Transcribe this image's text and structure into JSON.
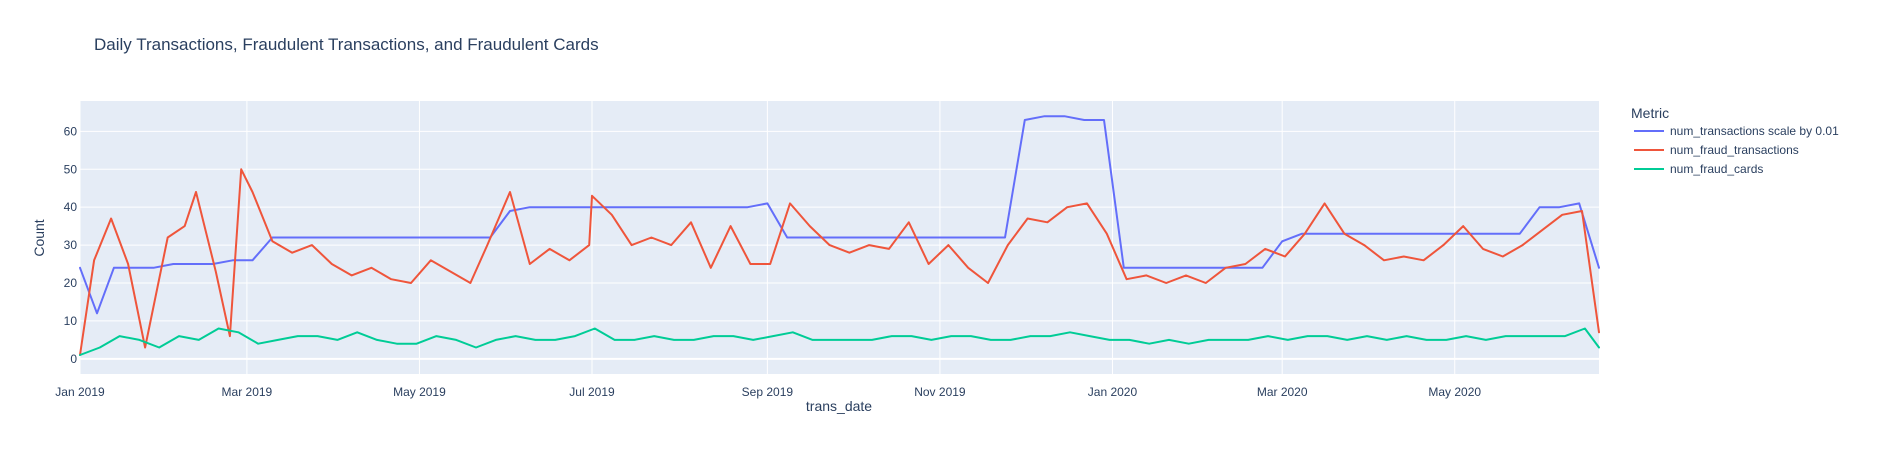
{
  "chart_data": {
    "type": "line",
    "title": "Daily Transactions, Fraudulent Transactions, and Fraudulent Cards",
    "xlabel": "trans_date",
    "ylabel": "Count",
    "x_range": [
      "2019-01-01",
      "2020-06-21"
    ],
    "ylim": [
      -4,
      68
    ],
    "x_ticks": [
      {
        "date": "2019-01-01",
        "label": "Jan 2019"
      },
      {
        "date": "2019-03-01",
        "label": "Mar 2019"
      },
      {
        "date": "2019-05-01",
        "label": "May 2019"
      },
      {
        "date": "2019-07-01",
        "label": "Jul 2019"
      },
      {
        "date": "2019-09-01",
        "label": "Sep 2019"
      },
      {
        "date": "2019-11-01",
        "label": "Nov 2019"
      },
      {
        "date": "2020-01-01",
        "label": "Jan 2020"
      },
      {
        "date": "2020-03-01",
        "label": "Mar 2020"
      },
      {
        "date": "2020-05-01",
        "label": "May 2020"
      }
    ],
    "y_ticks": [
      0,
      10,
      20,
      30,
      40,
      50,
      60
    ],
    "grid": true,
    "legend_title": "Metric",
    "legend_position": "right",
    "background_color": "#e5ecf6",
    "grid_color": "#ffffff",
    "series": [
      {
        "name": "num_transactions scale by 0.01",
        "color": "#636efa",
        "points": [
          [
            "2019-01-01",
            24
          ],
          [
            "2019-01-07",
            12
          ],
          [
            "2019-01-13",
            24
          ],
          [
            "2019-01-20",
            24
          ],
          [
            "2019-01-27",
            24
          ],
          [
            "2019-02-03",
            25
          ],
          [
            "2019-02-10",
            25
          ],
          [
            "2019-02-17",
            25
          ],
          [
            "2019-02-24",
            26
          ],
          [
            "2019-03-03",
            26
          ],
          [
            "2019-03-10",
            32
          ],
          [
            "2019-03-17",
            32
          ],
          [
            "2019-03-24",
            32
          ],
          [
            "2019-03-31",
            32
          ],
          [
            "2019-04-07",
            32
          ],
          [
            "2019-04-14",
            32
          ],
          [
            "2019-04-21",
            32
          ],
          [
            "2019-04-28",
            32
          ],
          [
            "2019-05-05",
            32
          ],
          [
            "2019-05-12",
            32
          ],
          [
            "2019-05-19",
            32
          ],
          [
            "2019-05-26",
            32
          ],
          [
            "2019-06-02",
            39
          ],
          [
            "2019-06-09",
            40
          ],
          [
            "2019-06-16",
            40
          ],
          [
            "2019-06-23",
            40
          ],
          [
            "2019-06-30",
            40
          ],
          [
            "2019-07-07",
            40
          ],
          [
            "2019-07-14",
            40
          ],
          [
            "2019-07-21",
            40
          ],
          [
            "2019-07-28",
            40
          ],
          [
            "2019-08-04",
            40
          ],
          [
            "2019-08-11",
            40
          ],
          [
            "2019-08-18",
            40
          ],
          [
            "2019-08-25",
            40
          ],
          [
            "2019-09-01",
            41
          ],
          [
            "2019-09-08",
            32
          ],
          [
            "2019-09-15",
            32
          ],
          [
            "2019-09-22",
            32
          ],
          [
            "2019-09-29",
            32
          ],
          [
            "2019-10-06",
            32
          ],
          [
            "2019-10-13",
            32
          ],
          [
            "2019-10-20",
            32
          ],
          [
            "2019-10-27",
            32
          ],
          [
            "2019-11-03",
            32
          ],
          [
            "2019-11-10",
            32
          ],
          [
            "2019-11-17",
            32
          ],
          [
            "2019-11-24",
            32
          ],
          [
            "2019-12-01",
            63
          ],
          [
            "2019-12-08",
            64
          ],
          [
            "2019-12-15",
            64
          ],
          [
            "2019-12-22",
            63
          ],
          [
            "2019-12-29",
            63
          ],
          [
            "2020-01-05",
            24
          ],
          [
            "2020-01-12",
            24
          ],
          [
            "2020-01-19",
            24
          ],
          [
            "2020-01-26",
            24
          ],
          [
            "2020-02-02",
            24
          ],
          [
            "2020-02-09",
            24
          ],
          [
            "2020-02-16",
            24
          ],
          [
            "2020-02-23",
            24
          ],
          [
            "2020-03-01",
            31
          ],
          [
            "2020-03-08",
            33
          ],
          [
            "2020-03-15",
            33
          ],
          [
            "2020-03-22",
            33
          ],
          [
            "2020-03-29",
            33
          ],
          [
            "2020-04-05",
            33
          ],
          [
            "2020-04-12",
            33
          ],
          [
            "2020-04-19",
            33
          ],
          [
            "2020-04-26",
            33
          ],
          [
            "2020-05-03",
            33
          ],
          [
            "2020-05-10",
            33
          ],
          [
            "2020-05-17",
            33
          ],
          [
            "2020-05-24",
            33
          ],
          [
            "2020-05-31",
            40
          ],
          [
            "2020-06-07",
            40
          ],
          [
            "2020-06-14",
            41
          ],
          [
            "2020-06-21",
            24
          ]
        ]
      },
      {
        "name": "num_fraud_transactions",
        "color": "#ef553b",
        "points": [
          [
            "2019-01-01",
            1
          ],
          [
            "2019-01-06",
            26
          ],
          [
            "2019-01-12",
            37
          ],
          [
            "2019-01-18",
            25
          ],
          [
            "2019-01-24",
            3
          ],
          [
            "2019-02-01",
            32
          ],
          [
            "2019-02-07",
            35
          ],
          [
            "2019-02-11",
            44
          ],
          [
            "2019-02-18",
            23
          ],
          [
            "2019-02-23",
            6
          ],
          [
            "2019-02-27",
            50
          ],
          [
            "2019-03-03",
            44
          ],
          [
            "2019-03-10",
            31
          ],
          [
            "2019-03-17",
            28
          ],
          [
            "2019-03-24",
            30
          ],
          [
            "2019-03-31",
            25
          ],
          [
            "2019-04-07",
            22
          ],
          [
            "2019-04-14",
            24
          ],
          [
            "2019-04-21",
            21
          ],
          [
            "2019-04-28",
            20
          ],
          [
            "2019-05-05",
            26
          ],
          [
            "2019-05-12",
            23
          ],
          [
            "2019-05-19",
            20
          ],
          [
            "2019-05-25",
            30
          ],
          [
            "2019-06-02",
            44
          ],
          [
            "2019-06-09",
            25
          ],
          [
            "2019-06-16",
            29
          ],
          [
            "2019-06-23",
            26
          ],
          [
            "2019-06-30",
            30
          ],
          [
            "2019-07-01",
            43
          ],
          [
            "2019-07-08",
            38
          ],
          [
            "2019-07-15",
            30
          ],
          [
            "2019-07-22",
            32
          ],
          [
            "2019-07-29",
            30
          ],
          [
            "2019-08-05",
            36
          ],
          [
            "2019-08-12",
            24
          ],
          [
            "2019-08-19",
            35
          ],
          [
            "2019-08-26",
            25
          ],
          [
            "2019-09-02",
            25
          ],
          [
            "2019-09-09",
            41
          ],
          [
            "2019-09-16",
            35
          ],
          [
            "2019-09-23",
            30
          ],
          [
            "2019-09-30",
            28
          ],
          [
            "2019-10-07",
            30
          ],
          [
            "2019-10-14",
            29
          ],
          [
            "2019-10-21",
            36
          ],
          [
            "2019-10-28",
            25
          ],
          [
            "2019-11-04",
            30
          ],
          [
            "2019-11-11",
            24
          ],
          [
            "2019-11-18",
            20
          ],
          [
            "2019-11-25",
            30
          ],
          [
            "2019-12-02",
            37
          ],
          [
            "2019-12-09",
            36
          ],
          [
            "2019-12-16",
            40
          ],
          [
            "2019-12-23",
            41
          ],
          [
            "2019-12-30",
            33
          ],
          [
            "2020-01-06",
            21
          ],
          [
            "2020-01-13",
            22
          ],
          [
            "2020-01-20",
            20
          ],
          [
            "2020-01-27",
            22
          ],
          [
            "2020-02-03",
            20
          ],
          [
            "2020-02-10",
            24
          ],
          [
            "2020-02-17",
            25
          ],
          [
            "2020-02-24",
            29
          ],
          [
            "2020-03-02",
            27
          ],
          [
            "2020-03-09",
            33
          ],
          [
            "2020-03-16",
            41
          ],
          [
            "2020-03-23",
            33
          ],
          [
            "2020-03-30",
            30
          ],
          [
            "2020-04-06",
            26
          ],
          [
            "2020-04-13",
            27
          ],
          [
            "2020-04-20",
            26
          ],
          [
            "2020-04-27",
            30
          ],
          [
            "2020-05-04",
            35
          ],
          [
            "2020-05-11",
            29
          ],
          [
            "2020-05-18",
            27
          ],
          [
            "2020-05-25",
            30
          ],
          [
            "2020-06-01",
            34
          ],
          [
            "2020-06-08",
            38
          ],
          [
            "2020-06-15",
            39
          ],
          [
            "2020-06-21",
            7
          ]
        ]
      },
      {
        "name": "num_fraud_cards",
        "color": "#00cc96",
        "points": [
          [
            "2019-01-01",
            1
          ],
          [
            "2019-01-08",
            3
          ],
          [
            "2019-01-15",
            6
          ],
          [
            "2019-01-22",
            5
          ],
          [
            "2019-01-29",
            3
          ],
          [
            "2019-02-05",
            6
          ],
          [
            "2019-02-12",
            5
          ],
          [
            "2019-02-19",
            8
          ],
          [
            "2019-02-26",
            7
          ],
          [
            "2019-03-05",
            4
          ],
          [
            "2019-03-12",
            5
          ],
          [
            "2019-03-19",
            6
          ],
          [
            "2019-03-26",
            6
          ],
          [
            "2019-04-02",
            5
          ],
          [
            "2019-04-09",
            7
          ],
          [
            "2019-04-16",
            5
          ],
          [
            "2019-04-23",
            4
          ],
          [
            "2019-04-30",
            4
          ],
          [
            "2019-05-07",
            6
          ],
          [
            "2019-05-14",
            5
          ],
          [
            "2019-05-21",
            3
          ],
          [
            "2019-05-28",
            5
          ],
          [
            "2019-06-04",
            6
          ],
          [
            "2019-06-11",
            5
          ],
          [
            "2019-06-18",
            5
          ],
          [
            "2019-06-25",
            6
          ],
          [
            "2019-07-02",
            8
          ],
          [
            "2019-07-09",
            5
          ],
          [
            "2019-07-16",
            5
          ],
          [
            "2019-07-23",
            6
          ],
          [
            "2019-07-30",
            5
          ],
          [
            "2019-08-06",
            5
          ],
          [
            "2019-08-13",
            6
          ],
          [
            "2019-08-20",
            6
          ],
          [
            "2019-08-27",
            5
          ],
          [
            "2019-09-03",
            6
          ],
          [
            "2019-09-10",
            7
          ],
          [
            "2019-09-17",
            5
          ],
          [
            "2019-09-24",
            5
          ],
          [
            "2019-10-01",
            5
          ],
          [
            "2019-10-08",
            5
          ],
          [
            "2019-10-15",
            6
          ],
          [
            "2019-10-22",
            6
          ],
          [
            "2019-10-29",
            5
          ],
          [
            "2019-11-05",
            6
          ],
          [
            "2019-11-12",
            6
          ],
          [
            "2019-11-19",
            5
          ],
          [
            "2019-11-26",
            5
          ],
          [
            "2019-12-03",
            6
          ],
          [
            "2019-12-10",
            6
          ],
          [
            "2019-12-17",
            7
          ],
          [
            "2019-12-24",
            6
          ],
          [
            "2019-12-31",
            5
          ],
          [
            "2020-01-07",
            5
          ],
          [
            "2020-01-14",
            4
          ],
          [
            "2020-01-21",
            5
          ],
          [
            "2020-01-28",
            4
          ],
          [
            "2020-02-04",
            5
          ],
          [
            "2020-02-11",
            5
          ],
          [
            "2020-02-18",
            5
          ],
          [
            "2020-02-25",
            6
          ],
          [
            "2020-03-03",
            5
          ],
          [
            "2020-03-10",
            6
          ],
          [
            "2020-03-17",
            6
          ],
          [
            "2020-03-24",
            5
          ],
          [
            "2020-03-31",
            6
          ],
          [
            "2020-04-07",
            5
          ],
          [
            "2020-04-14",
            6
          ],
          [
            "2020-04-21",
            5
          ],
          [
            "2020-04-28",
            5
          ],
          [
            "2020-05-05",
            6
          ],
          [
            "2020-05-12",
            5
          ],
          [
            "2020-05-19",
            6
          ],
          [
            "2020-05-26",
            6
          ],
          [
            "2020-06-02",
            6
          ],
          [
            "2020-06-09",
            6
          ],
          [
            "2020-06-16",
            8
          ],
          [
            "2020-06-21",
            3
          ]
        ]
      }
    ]
  }
}
